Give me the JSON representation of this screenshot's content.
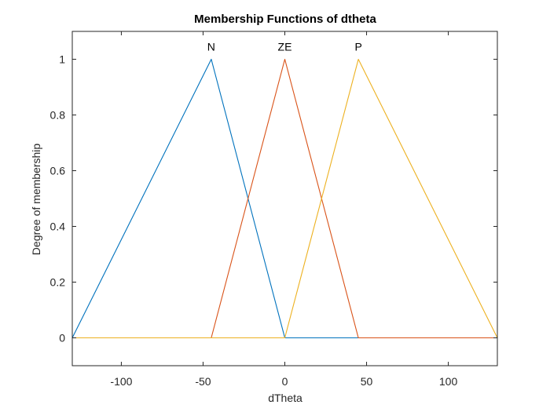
{
  "chart_data": {
    "type": "line",
    "title": "Membership Functions of dtheta",
    "xlabel": "dTheta",
    "ylabel": "Degree of membership",
    "xlim": [
      -130,
      130
    ],
    "ylim": [
      -0.1,
      1.1
    ],
    "xticks": [
      -100,
      -50,
      0,
      50,
      100
    ],
    "xtick_labels": [
      "-100",
      "-50",
      "0",
      "50",
      "100"
    ],
    "yticks": [
      0,
      0.2,
      0.4,
      0.6,
      0.8,
      1
    ],
    "ytick_labels": [
      "0",
      "0.2",
      "0.4",
      "0.6",
      "0.8",
      "1"
    ],
    "grid": false,
    "box": true,
    "series": [
      {
        "name": "N",
        "color": "#0072BD",
        "x": [
          -130,
          -45,
          0,
          130
        ],
        "y": [
          0,
          1,
          0,
          0
        ],
        "label_x": -45
      },
      {
        "name": "ZE",
        "color": "#D95319",
        "x": [
          -130,
          -45,
          0,
          45,
          130
        ],
        "y": [
          0,
          0,
          1,
          0,
          0
        ],
        "label_x": 0
      },
      {
        "name": "P",
        "color": "#EDB120",
        "x": [
          -130,
          0,
          45,
          130
        ],
        "y": [
          0,
          0,
          1,
          0
        ],
        "label_x": 45
      }
    ]
  }
}
